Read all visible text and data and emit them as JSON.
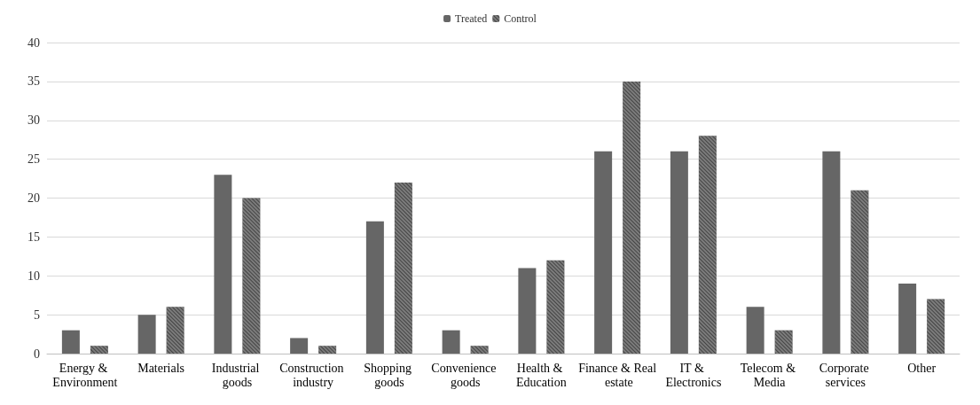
{
  "chart_data": {
    "type": "bar",
    "categories": [
      "Energy & Environment",
      "Materials",
      "Industrial goods",
      "Construction industry",
      "Shopping goods",
      "Convenience goods",
      "Health & Education",
      "Finance & Real estate",
      "IT & Electronics",
      "Telecom & Media",
      "Corporate services",
      "Other"
    ],
    "series": [
      {
        "name": "Treated",
        "color": "#666666",
        "values": [
          3,
          5,
          23,
          2,
          17,
          3,
          11,
          26,
          26,
          6,
          26,
          9
        ]
      },
      {
        "name": "Control",
        "color": "#444444",
        "values": [
          1,
          6,
          20,
          1,
          22,
          1,
          12,
          35,
          28,
          3,
          21,
          7
        ]
      }
    ],
    "ylim": [
      0,
      40
    ],
    "yticks": [
      0,
      5,
      10,
      15,
      20,
      25,
      30,
      35,
      40
    ],
    "grid": "y",
    "legend": "top"
  }
}
